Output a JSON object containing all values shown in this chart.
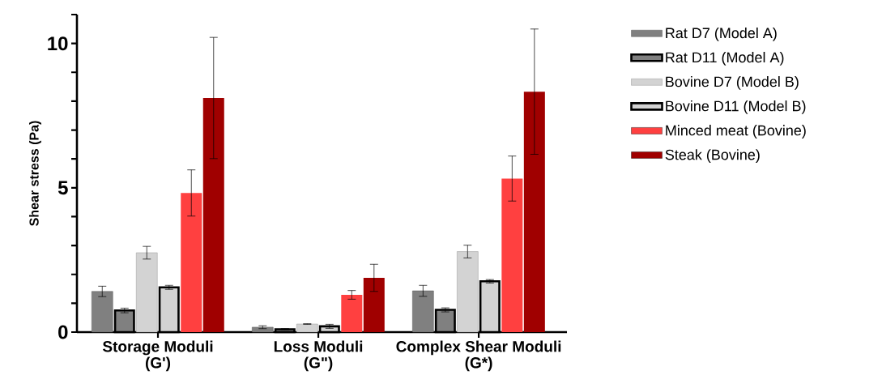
{
  "chart_data": {
    "type": "bar",
    "ylabel": "Shear stress  (Pa)",
    "categories": [
      "Storage Moduli (G')",
      "Loss Moduli (G\")",
      "Complex Shear Moduli (G*)"
    ],
    "series": [
      {
        "name": "Rat D7 (Model A)",
        "color": "#808080",
        "values": [
          1.41,
          0.17,
          1.43
        ],
        "errors": [
          0.18,
          0.05,
          0.19
        ]
      },
      {
        "name": "Rat D11 (Model A)",
        "color": "#808080",
        "values": [
          0.75,
          0.1,
          0.77
        ],
        "errors": [
          0.08,
          0.02,
          0.07
        ]
      },
      {
        "name": "Bovine D7 (Model B)",
        "color": "#d3d3d3",
        "values": [
          2.75,
          0.28,
          2.79
        ],
        "errors": [
          0.22,
          0.01,
          0.22
        ]
      },
      {
        "name": "Bovine D11 (Model B)",
        "color": "#d3d3d3",
        "values": [
          1.55,
          0.2,
          1.76
        ],
        "errors": [
          0.07,
          0.07,
          0.06
        ]
      },
      {
        "name": "Minced meat (Bovine)",
        "color": "#ff4040",
        "values": [
          4.82,
          1.29,
          5.32
        ],
        "errors": [
          0.8,
          0.15,
          0.78
        ]
      },
      {
        "name": "Steak (Bovine)",
        "color": "#a00000",
        "values": [
          8.11,
          1.88,
          8.33
        ],
        "errors": [
          2.1,
          0.47,
          2.17
        ]
      }
    ],
    "ylim": [
      0,
      11
    ],
    "yticks": [
      0,
      {
        "value": 1,
        "label": null
      },
      {
        "value": 2,
        "label": null
      },
      {
        "value": 3,
        "label": null
      },
      {
        "value": 4,
        "label": null
      },
      5,
      {
        "value": 6,
        "label": null
      },
      {
        "value": 7,
        "label": null
      },
      {
        "value": 8,
        "label": null
      },
      {
        "value": 9,
        "label": null
      },
      10,
      {
        "value": 11,
        "label": null
      }
    ],
    "legend": "right"
  }
}
